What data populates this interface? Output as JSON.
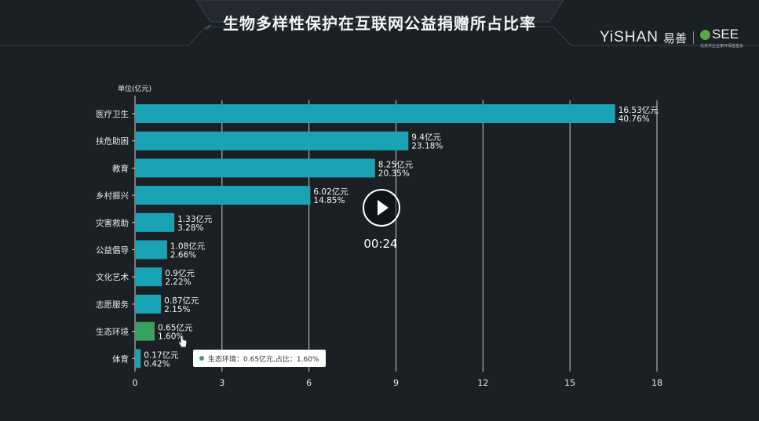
{
  "title": "生物多样性保护在互联网公益捐赠所占比率",
  "brand": {
    "yishan_en": "YiSHAN",
    "yishan_cn": "易善",
    "see": "SEE",
    "see_subtitle": "北京市企业家环保基金会"
  },
  "colors": {
    "bar": "#1aa3b5",
    "highlight_bar": "#3aa060",
    "background": "#1b2024",
    "grid": "#e7ebee"
  },
  "chart_data": {
    "type": "bar",
    "orientation": "horizontal",
    "unit_label": "单位(亿元)",
    "categories": [
      "医疗卫生",
      "扶危助困",
      "教育",
      "乡村振兴",
      "灾害救助",
      "公益倡导",
      "文化艺术",
      "志愿服务",
      "生态环境",
      "体育"
    ],
    "values": [
      16.53,
      9.4,
      8.25,
      6.02,
      1.33,
      1.08,
      0.9,
      0.87,
      0.65,
      0.17
    ],
    "value_labels": [
      "16.53亿元",
      "9.4亿元",
      "8.25亿元",
      "6.02亿元",
      "1.33亿元",
      "1.08亿元",
      "0.9亿元",
      "0.87亿元",
      "0.65亿元",
      "0.17亿元"
    ],
    "percent_labels": [
      "40.76%",
      "23.18%",
      "20.35%",
      "14.85%",
      "3.28%",
      "2.66%",
      "2.22%",
      "2.15%",
      "1.60%",
      "0.42%"
    ],
    "highlight_index": 8,
    "xlim": [
      0,
      18
    ],
    "xticks": [
      0,
      3,
      6,
      9,
      12,
      15,
      18
    ],
    "grid": true
  },
  "tooltip": {
    "text": "生态环境：0.65亿元,占比：1.60%"
  },
  "video": {
    "timecode": "00:24",
    "play_icon": "play-icon"
  }
}
